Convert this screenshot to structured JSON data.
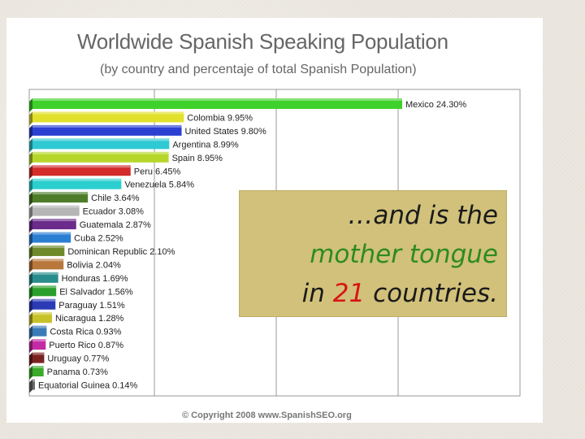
{
  "chart_data": {
    "type": "bar",
    "orientation": "horizontal",
    "title": "Worldwide Spanish Speaking Population",
    "subtitle": "(by country and percentaje of total Spanish Population)",
    "unit": "%",
    "grid": true,
    "categories": [
      "Mexico",
      "Colombia",
      "United States",
      "Argentina",
      "Spain",
      "Peru",
      "Venezuela",
      "Chile",
      "Ecuador",
      "Guatemala",
      "Cuba",
      "Dominican Republic",
      "Bolivia",
      "Honduras",
      "El Salvador",
      "Paraguay",
      "Nicaragua",
      "Costa Rica",
      "Puerto Rico",
      "Uruguay",
      "Panama",
      "Equatorial Guinea"
    ],
    "values": [
      24.3,
      9.95,
      9.8,
      8.99,
      8.95,
      6.45,
      5.84,
      3.64,
      3.08,
      2.87,
      2.52,
      2.1,
      2.04,
      1.69,
      1.56,
      1.51,
      1.28,
      0.93,
      0.87,
      0.77,
      0.73,
      0.14
    ],
    "data_labels": [
      "Mexico 24.30%",
      "Colombia 9.95%",
      "United States 9.80%",
      "Argentina 8.99%",
      "Spain 8.95%",
      "Peru 6.45%",
      "Venezuela 5.84%",
      "Chile 3.64%",
      "Ecuador 3.08%",
      "Guatemala 2.87%",
      "Cuba 2.52%",
      "Dominican Republic 2.10%",
      "Bolivia 2.04%",
      "Honduras 1.69%",
      "El Salvador 1.56%",
      "Paraguay 1.51%",
      "Nicaragua 1.28%",
      "Costa Rica 0.93%",
      "Puerto Rico 0.87%",
      "Uruguay 0.77%",
      "Panama 0.73%",
      "Equatorial Guinea 0.14%"
    ],
    "colors": [
      "#3fd12b",
      "#e2e02a",
      "#2b3fd3",
      "#2fc9d3",
      "#b7d62a",
      "#d42b2b",
      "#2bcfcf",
      "#4e7d2a",
      "#b5b5b5",
      "#6a2b8a",
      "#2b7fd3",
      "#6f8a2b",
      "#b8773b",
      "#2a8d8d",
      "#2b9f2b",
      "#2b3bb5",
      "#c8c22a",
      "#3b7ab8",
      "#c42ba5",
      "#7a2222",
      "#3aaa2a",
      "#6a6a6a"
    ],
    "xlim": [
      0,
      24.3
    ]
  },
  "copyright": "© Copyright 2008 www.SpanishSEO.org",
  "callout": {
    "line1": "…and is the",
    "line2": "mother tongue",
    "line3_pre": "in ",
    "line3_num": "21",
    "line3_post": " countries."
  }
}
